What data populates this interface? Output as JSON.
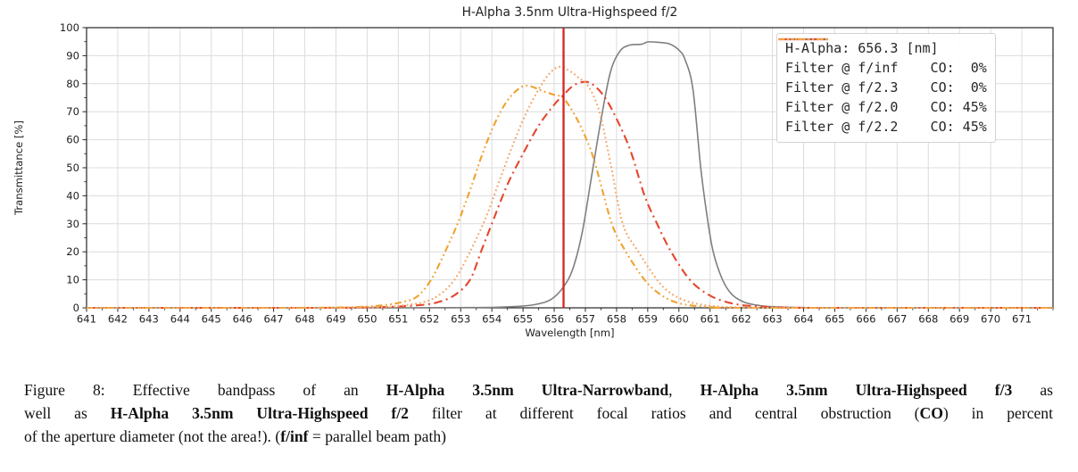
{
  "chart_data": {
    "type": "line",
    "title": "H-Alpha 3.5nm Ultra-Highspeed f/2",
    "xlabel": "Wavelength [nm]",
    "ylabel": "Transmittance [%]",
    "xlim": [
      641,
      672
    ],
    "ylim": [
      0,
      100
    ],
    "x_ticks": [
      641,
      642,
      643,
      644,
      645,
      646,
      647,
      648,
      649,
      650,
      651,
      652,
      653,
      654,
      655,
      656,
      657,
      658,
      659,
      660,
      661,
      662,
      663,
      664,
      665,
      666,
      667,
      668,
      669,
      670,
      671
    ],
    "y_ticks": [
      0,
      10,
      20,
      30,
      40,
      50,
      60,
      70,
      80,
      90,
      100
    ],
    "x_minor_step": 0.5,
    "y_minor_step": 5,
    "grid": true,
    "legend_position": "upper right",
    "vline": {
      "x": 656.3,
      "label": "H-Alpha: 656.3 [nm]",
      "color": "#d62323",
      "lw": 2.3
    },
    "series": [
      {
        "label": "Filter @ f/inf",
        "co": "0%",
        "color": "#7f7f7f",
        "dash": "solid",
        "lw": 1.6,
        "points": [
          [
            641,
            0
          ],
          [
            649,
            0
          ],
          [
            651,
            0
          ],
          [
            652.3,
            0.05
          ],
          [
            653.2,
            0.1
          ],
          [
            654.1,
            0.2
          ],
          [
            654.8,
            0.5
          ],
          [
            655.4,
            1.2
          ],
          [
            655.9,
            3
          ],
          [
            656.3,
            7.5
          ],
          [
            656.6,
            14
          ],
          [
            656.9,
            27
          ],
          [
            657.2,
            47
          ],
          [
            657.5,
            67
          ],
          [
            657.8,
            84
          ],
          [
            658.1,
            91.5
          ],
          [
            658.4,
            93.7
          ],
          [
            658.8,
            94.1
          ],
          [
            659,
            94.9
          ],
          [
            659.3,
            94.8
          ],
          [
            659.7,
            94.2
          ],
          [
            660,
            92
          ],
          [
            660.2,
            88.5
          ],
          [
            660.45,
            78
          ],
          [
            660.7,
            50
          ],
          [
            660.9,
            33
          ],
          [
            661.1,
            20
          ],
          [
            661.4,
            10
          ],
          [
            661.7,
            4.8
          ],
          [
            662.1,
            2
          ],
          [
            662.6,
            0.8
          ],
          [
            663.2,
            0.3
          ],
          [
            664,
            0.1
          ],
          [
            665,
            0
          ],
          [
            672,
            0
          ]
        ]
      },
      {
        "label": "Filter @ f/2.3",
        "co": "0%",
        "color": "#e5472d",
        "dash": "dashdot",
        "lw": 2.1,
        "points": [
          [
            641,
            0
          ],
          [
            648.5,
            0
          ],
          [
            649.6,
            0.1
          ],
          [
            650.6,
            0.3
          ],
          [
            651.5,
            0.8
          ],
          [
            652.2,
            1.8
          ],
          [
            652.8,
            4.5
          ],
          [
            653.3,
            10
          ],
          [
            653.65,
            20
          ],
          [
            654,
            30
          ],
          [
            654.5,
            44
          ],
          [
            655,
            55
          ],
          [
            655.5,
            65
          ],
          [
            656,
            72.5
          ],
          [
            656.3,
            76
          ],
          [
            656.6,
            79.2
          ],
          [
            656.9,
            80.6
          ],
          [
            657.2,
            80
          ],
          [
            657.6,
            75.5
          ],
          [
            658,
            67.5
          ],
          [
            658.45,
            56
          ],
          [
            658.9,
            40
          ],
          [
            659.3,
            30
          ],
          [
            659.75,
            20
          ],
          [
            660.35,
            10
          ],
          [
            660.9,
            5
          ],
          [
            661.4,
            2.5
          ],
          [
            662,
            1
          ],
          [
            662.8,
            0.35
          ],
          [
            663.6,
            0.1
          ],
          [
            664.5,
            0
          ],
          [
            672,
            0
          ]
        ]
      },
      {
        "label": "Filter @ f/2.0",
        "co": "45%",
        "color": "#f0a22e",
        "dash": "dashdotdot",
        "lw": 2.1,
        "points": [
          [
            641,
            0
          ],
          [
            647.5,
            0
          ],
          [
            648.7,
            0.1
          ],
          [
            649.7,
            0.3
          ],
          [
            650.5,
            0.9
          ],
          [
            651.1,
            2
          ],
          [
            651.6,
            4
          ],
          [
            652.05,
            10
          ],
          [
            652.5,
            20
          ],
          [
            652.9,
            30
          ],
          [
            653.3,
            42
          ],
          [
            653.7,
            55
          ],
          [
            654.1,
            66
          ],
          [
            654.5,
            74
          ],
          [
            654.9,
            78.5
          ],
          [
            655.2,
            79.2
          ],
          [
            655.6,
            77.5
          ],
          [
            656,
            76
          ],
          [
            656.3,
            74.8
          ],
          [
            656.7,
            68
          ],
          [
            657,
            61
          ],
          [
            657.3,
            52
          ],
          [
            657.85,
            30
          ],
          [
            658.3,
            20
          ],
          [
            658.9,
            10
          ],
          [
            659.4,
            4.8
          ],
          [
            659.9,
            2
          ],
          [
            660.5,
            0.7
          ],
          [
            661.2,
            0.2
          ],
          [
            662,
            0
          ],
          [
            672,
            0
          ]
        ]
      },
      {
        "label": "Filter @ f/2.2",
        "co": "45%",
        "color": "#f6a566",
        "dash": "dotted",
        "lw": 2.1,
        "points": [
          [
            641,
            0
          ],
          [
            648.8,
            0
          ],
          [
            649.8,
            0.1
          ],
          [
            650.6,
            0.3
          ],
          [
            651.2,
            0.9
          ],
          [
            651.8,
            2
          ],
          [
            652.3,
            4.5
          ],
          [
            652.8,
            10
          ],
          [
            653.3,
            20
          ],
          [
            653.8,
            32
          ],
          [
            654.2,
            44
          ],
          [
            654.6,
            56
          ],
          [
            655,
            67
          ],
          [
            655.4,
            76
          ],
          [
            655.8,
            83
          ],
          [
            656.15,
            86
          ],
          [
            656.5,
            84.5
          ],
          [
            656.8,
            82
          ],
          [
            657.1,
            79
          ],
          [
            657.45,
            70
          ],
          [
            657.8,
            52
          ],
          [
            658.2,
            30
          ],
          [
            658.7,
            20
          ],
          [
            659.3,
            10
          ],
          [
            659.7,
            5.5
          ],
          [
            660.2,
            2.6
          ],
          [
            660.8,
            1
          ],
          [
            661.5,
            0.3
          ],
          [
            662.3,
            0.1
          ],
          [
            663.2,
            0
          ],
          [
            672,
            0
          ]
        ]
      }
    ],
    "legend": [
      {
        "label": "H-Alpha: 656.3 [nm]",
        "color": "#d62323",
        "dash": "solid",
        "lw": 2.3
      },
      {
        "label": "Filter @ f/inf    CO:  0%",
        "color": "#7f7f7f",
        "dash": "solid",
        "lw": 1.6
      },
      {
        "label": "Filter @ f/2.3    CO:  0%",
        "color": "#e5472d",
        "dash": "dashdot",
        "lw": 2.1
      },
      {
        "label": "Filter @ f/2.0    CO: 45%",
        "color": "#f0a22e",
        "dash": "dashdotdot",
        "lw": 2.1
      },
      {
        "label": "Filter @ f/2.2    CO: 45%",
        "color": "#f6a566",
        "dash": "dotted",
        "lw": 2.1
      }
    ]
  },
  "colors": {
    "grid": "#dcdcdc",
    "spine": "#262626",
    "tick_label": "#1f1f1f",
    "legend_border": "#d2d2d2"
  },
  "caption": {
    "lines": [
      {
        "justify": true,
        "segments": [
          {
            "t": "Figure 8: Effective bandpass of an ",
            "b": false
          },
          {
            "t": "H-Alpha 3.5nm Ultra-Narrowband",
            "b": true
          },
          {
            "t": ", ",
            "b": false
          },
          {
            "t": "H-Alpha 3.5nm Ultra-Highspeed f/3",
            "b": true
          },
          {
            "t": " as",
            "b": false
          }
        ]
      },
      {
        "justify": true,
        "segments": [
          {
            "t": "well as ",
            "b": false
          },
          {
            "t": "H-Alpha 3.5nm Ultra-Highspeed f/2",
            "b": true
          },
          {
            "t": " filter at different focal ratios and central obstruction (",
            "b": false
          },
          {
            "t": "CO",
            "b": true
          },
          {
            "t": ") in percent",
            "b": false
          }
        ]
      },
      {
        "justify": false,
        "segments": [
          {
            "t": "of the aperture diameter (not the area!). (",
            "b": false
          },
          {
            "t": "f/inf",
            "b": true
          },
          {
            "t": " = parallel beam path)",
            "b": false
          }
        ]
      }
    ]
  }
}
